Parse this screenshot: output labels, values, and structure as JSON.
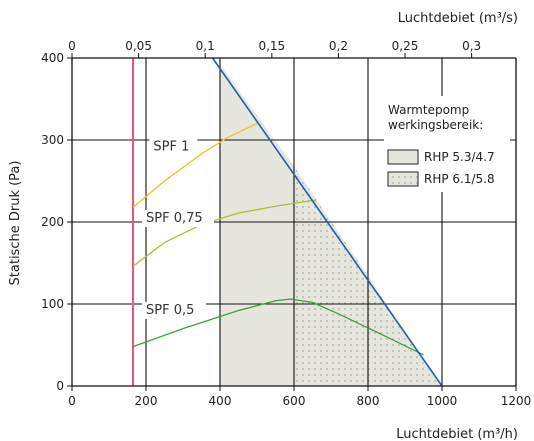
{
  "chart_data": {
    "type": "line",
    "x_bottom": {
      "label": "Luchtdebiet (m³/h)",
      "range": [
        0,
        1200
      ],
      "ticks": [
        0,
        200,
        400,
        600,
        800,
        1000,
        1200
      ]
    },
    "x_top": {
      "label": "Luchtdebiet (m³/s)",
      "range": [
        0,
        0.3333
      ],
      "ticks": [
        0,
        0.05,
        0.1,
        0.15,
        0.2,
        0.25,
        0.3
      ],
      "tick_labels": [
        "0",
        "0,05",
        "0,1",
        "0,15",
        "0,2",
        "0,25",
        "0,3"
      ]
    },
    "y": {
      "label": "Statische Druk (Pa)",
      "range": [
        0,
        400
      ],
      "ticks": [
        0,
        100,
        200,
        300,
        400
      ]
    },
    "grid": true,
    "legend": {
      "title_lines": [
        "Warmtepomp",
        "werkingsbereik:"
      ],
      "items": [
        {
          "name": "RHP 5.3/4.7",
          "fill": "#e6e6df",
          "pattern": "solid"
        },
        {
          "name": "RHP 6.1/5.8",
          "fill": "#e6e6df",
          "pattern": "dots"
        }
      ]
    },
    "regions": [
      {
        "name": "RHP 5.3/4.7",
        "polygon": [
          [
            400,
            0
          ],
          [
            400,
            392
          ],
          [
            600,
            268
          ],
          [
            600,
            0
          ]
        ]
      },
      {
        "name": "RHP 6.1/5.8",
        "polygon": [
          [
            600,
            0
          ],
          [
            600,
            268
          ],
          [
            1000,
            0
          ]
        ]
      }
    ],
    "boundary_line": {
      "color": "#2060b0",
      "points": [
        [
          380,
          400
        ],
        [
          1000,
          0
        ]
      ]
    },
    "min_flow_line": {
      "color": "#e8507a",
      "x": 165,
      "y_range": [
        0,
        400
      ]
    },
    "series": [
      {
        "label": "SPF 1",
        "color": "#f0c020",
        "points": [
          [
            165,
            218
          ],
          [
            250,
            250
          ],
          [
            350,
            283
          ],
          [
            420,
            303
          ],
          [
            500,
            320
          ]
        ]
      },
      {
        "label": "SPF 0,75",
        "color": "#a8c030",
        "points": [
          [
            165,
            146
          ],
          [
            250,
            175
          ],
          [
            350,
            197
          ],
          [
            450,
            211
          ],
          [
            560,
            220
          ],
          [
            660,
            227
          ]
        ]
      },
      {
        "label": "SPF 0,5",
        "color": "#3ea03e",
        "points": [
          [
            165,
            48
          ],
          [
            300,
            70
          ],
          [
            450,
            92
          ],
          [
            550,
            104
          ],
          [
            590,
            106
          ],
          [
            650,
            102
          ],
          [
            720,
            88
          ],
          [
            850,
            60
          ],
          [
            950,
            38
          ]
        ]
      }
    ],
    "series_label_positions": [
      {
        "label": "SPF 1",
        "x": 220,
        "y": 287
      },
      {
        "label": "SPF 0,75",
        "x": 200,
        "y": 200
      },
      {
        "label": "SPF 0,5",
        "x": 200,
        "y": 88
      }
    ]
  }
}
